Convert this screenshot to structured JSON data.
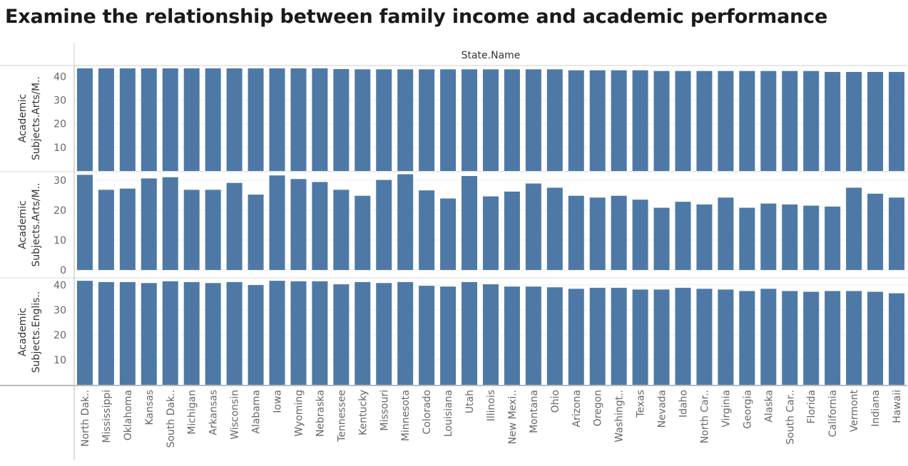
{
  "title": "Examine the relationship between family income and academic performance",
  "chart_data": {
    "type": "bar",
    "column_header": "State.Name",
    "bar_color": "#4e79a7",
    "categories": [
      "North Dak..",
      "Mississippi",
      "Oklahoma",
      "Kansas",
      "South Dak..",
      "Michigan",
      "Arkansas",
      "Wisconsin",
      "Alabama",
      "Iowa",
      "Wyoming",
      "Nebraska",
      "Tennessee",
      "Kentucky",
      "Missouri",
      "Minnesota",
      "Colorado",
      "Louisiana",
      "Utah",
      "Illinois",
      "New Mexi..",
      "Montana",
      "Ohio",
      "Arizona",
      "Oregon",
      "Washingt..",
      "Texas",
      "Nevada",
      "Idaho",
      "North Car..",
      "Virginia",
      "Georgia",
      "Alaska",
      "South Car..",
      "Florida",
      "California",
      "Vermont",
      "Indiana",
      "Hawaii"
    ],
    "panels": [
      {
        "label_line1": "Academic",
        "label_line2": "Subjects.Arts/M..",
        "ticks": [
          10,
          20,
          30,
          40
        ],
        "ylim": [
          0,
          44.6
        ],
        "values": [
          43.4,
          43.4,
          43.4,
          43.4,
          43.4,
          43.4,
          43.4,
          43.4,
          43.4,
          43.4,
          43.4,
          43.4,
          43.1,
          43.0,
          43.0,
          43.0,
          43.0,
          43.0,
          43.0,
          43.0,
          43.0,
          43.0,
          43.0,
          42.6,
          42.6,
          42.6,
          42.6,
          42.3,
          42.3,
          42.3,
          42.3,
          42.3,
          42.3,
          42.3,
          42.3,
          41.9,
          41.9,
          41.9,
          41.9
        ]
      },
      {
        "label_line1": "Academic",
        "label_line2": "Subjects.Arts/M..",
        "ticks": [
          0,
          10,
          20,
          30
        ],
        "ylim": [
          -2.4,
          32.6
        ],
        "values": [
          31.8,
          26.8,
          27.2,
          30.6,
          31.0,
          26.8,
          26.8,
          29.1,
          25.2,
          31.6,
          30.4,
          29.4,
          26.8,
          24.8,
          30.1,
          32.0,
          26.6,
          23.9,
          31.4,
          24.6,
          26.2,
          28.9,
          27.5,
          24.8,
          24.2,
          24.8,
          23.5,
          20.8,
          22.8,
          21.9,
          24.2,
          20.8,
          22.2,
          21.9,
          21.5,
          21.2,
          27.5,
          25.5,
          24.2
        ]
      },
      {
        "label_line1": "Academic",
        "label_line2": "Subjects.Englis..",
        "ticks": [
          10,
          20,
          30,
          40
        ],
        "ylim": [
          0,
          42.3
        ],
        "values": [
          41.7,
          41.2,
          41.2,
          40.8,
          41.5,
          41.2,
          40.8,
          41.2,
          40.0,
          41.7,
          41.5,
          41.5,
          40.3,
          41.2,
          40.8,
          41.2,
          39.7,
          39.4,
          41.2,
          40.3,
          39.4,
          39.4,
          39.1,
          38.5,
          38.9,
          38.9,
          38.2,
          38.2,
          38.9,
          38.5,
          38.2,
          37.6,
          38.5,
          37.6,
          37.3,
          37.6,
          37.6,
          37.3,
          36.7
        ]
      }
    ]
  }
}
